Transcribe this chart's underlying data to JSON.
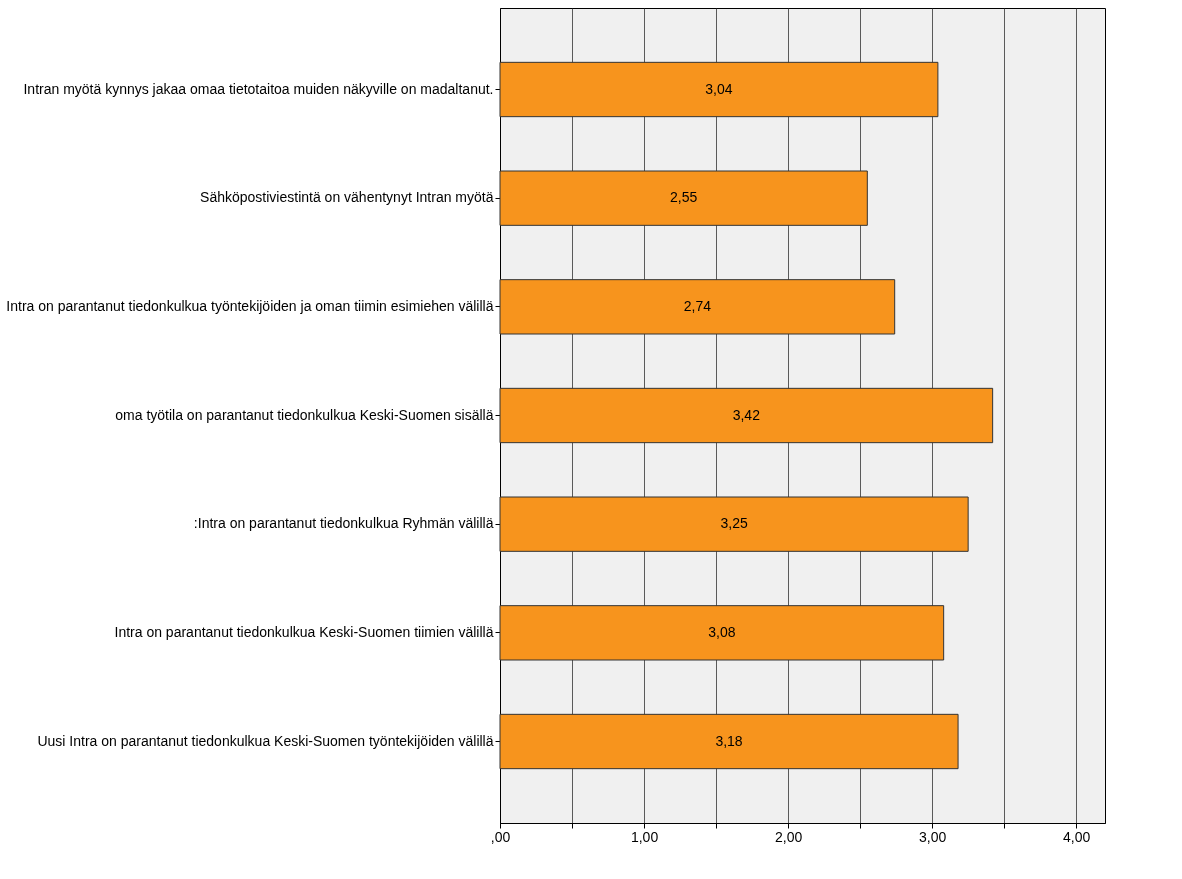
{
  "chart_data": {
    "type": "bar",
    "orientation": "horizontal",
    "categories": [
      "Intran myötä kynnys jakaa omaa tietotaitoa muiden näkyville on madaltanut.",
      "Sähköpostiviestintä on vähentynyt Intran myötä",
      "Intra on parantanut tiedonkulkua työntekijöiden ja oman tiimin esimiehen välillä",
      "oma työtila on parantanut tiedonkulkua Keski-Suomen sisällä",
      ":Intra on parantanut tiedonkulkua Ryhmän välillä",
      "Intra on parantanut tiedonkulkua Keski-Suomen tiimien välillä",
      "Uusi Intra on parantanut tiedonkulkua Keski-Suomen työntekijöiden välillä"
    ],
    "values": [
      3.04,
      2.55,
      2.74,
      3.42,
      3.25,
      3.08,
      3.18
    ],
    "value_labels": [
      "3,04",
      "2,55",
      "2,74",
      "3,42",
      "3,25",
      "3,08",
      "3,18"
    ],
    "color": "#f7941d",
    "xlim": [
      0,
      4.2
    ],
    "xticks": [
      {
        "value": 0,
        "label": ",00"
      },
      {
        "value": 0.5,
        "label": null
      },
      {
        "value": 1,
        "label": "1,00"
      },
      {
        "value": 1.5,
        "label": null
      },
      {
        "value": 2,
        "label": "2,00"
      },
      {
        "value": 2.5,
        "label": null
      },
      {
        "value": 3,
        "label": "3,00"
      },
      {
        "value": 3.5,
        "label": null
      },
      {
        "value": 4,
        "label": "4,00"
      }
    ],
    "grid": true
  }
}
